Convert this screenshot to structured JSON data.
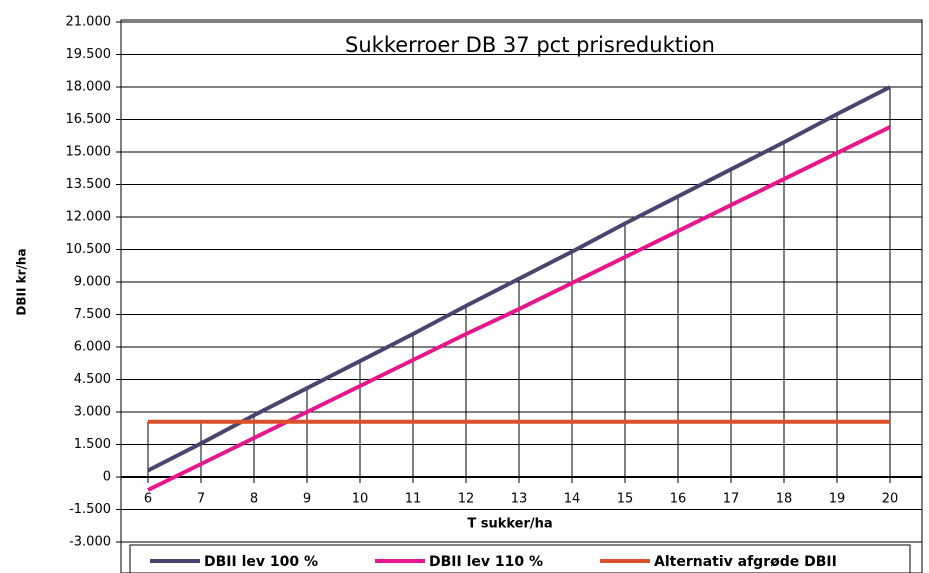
{
  "chart_data": {
    "type": "line",
    "title": "Sukkerroer DB 37 pct prisreduktion",
    "x_label": "T sukker/ha",
    "y_label": "DBII kr/ha",
    "categories": [
      "6",
      "7",
      "8",
      "9",
      "10",
      "11",
      "12",
      "13",
      "14",
      "15",
      "16",
      "17",
      "18",
      "19",
      "20"
    ],
    "series": [
      {
        "name": "DBII lev 100 %",
        "color": "#4a4470",
        "values": [
          300,
          1550,
          2850,
          4100,
          5350,
          6600,
          7900,
          9150,
          10400,
          11700,
          12950,
          14200,
          15450,
          16750,
          18000
        ]
      },
      {
        "name": "DBII lev 110 %",
        "color": "#e8168c",
        "values": [
          -600,
          600,
          1800,
          3000,
          4200,
          5400,
          6600,
          7750,
          8950,
          10150,
          11350,
          12550,
          13750,
          14950,
          16150
        ]
      },
      {
        "name": "Alternativ afgrøde DBII",
        "color": "#d9502a",
        "values": [
          2550,
          2550,
          2550,
          2550,
          2550,
          2550,
          2550,
          2550,
          2550,
          2550,
          2550,
          2550,
          2550,
          2550,
          2550
        ]
      }
    ],
    "ylim": [
      -3000,
      21000
    ],
    "yticks": [
      {
        "value": -3000,
        "label": "-3.000"
      },
      {
        "value": -1500,
        "label": "-1.500"
      },
      0,
      {
        "value": 1500,
        "label": "1.500"
      },
      {
        "value": 3000,
        "label": "3.000"
      },
      {
        "value": 4500,
        "label": "4.500"
      },
      {
        "value": 6000,
        "label": "6.000"
      },
      {
        "value": 7500,
        "label": "7.500"
      },
      {
        "value": 9000,
        "label": "9.000"
      },
      {
        "value": 10500,
        "label": "10.500"
      },
      {
        "value": 12000,
        "label": "12.000"
      },
      {
        "value": 13500,
        "label": "13.500"
      },
      {
        "value": 15000,
        "label": "15.000"
      },
      {
        "value": 16500,
        "label": "16.500"
      },
      {
        "value": 18000,
        "label": "18.000"
      },
      {
        "value": 19500,
        "label": "19.500"
      },
      {
        "value": 21000,
        "label": "21.000"
      }
    ],
    "grid": true,
    "drop_lines": true,
    "legend": "bottom"
  }
}
